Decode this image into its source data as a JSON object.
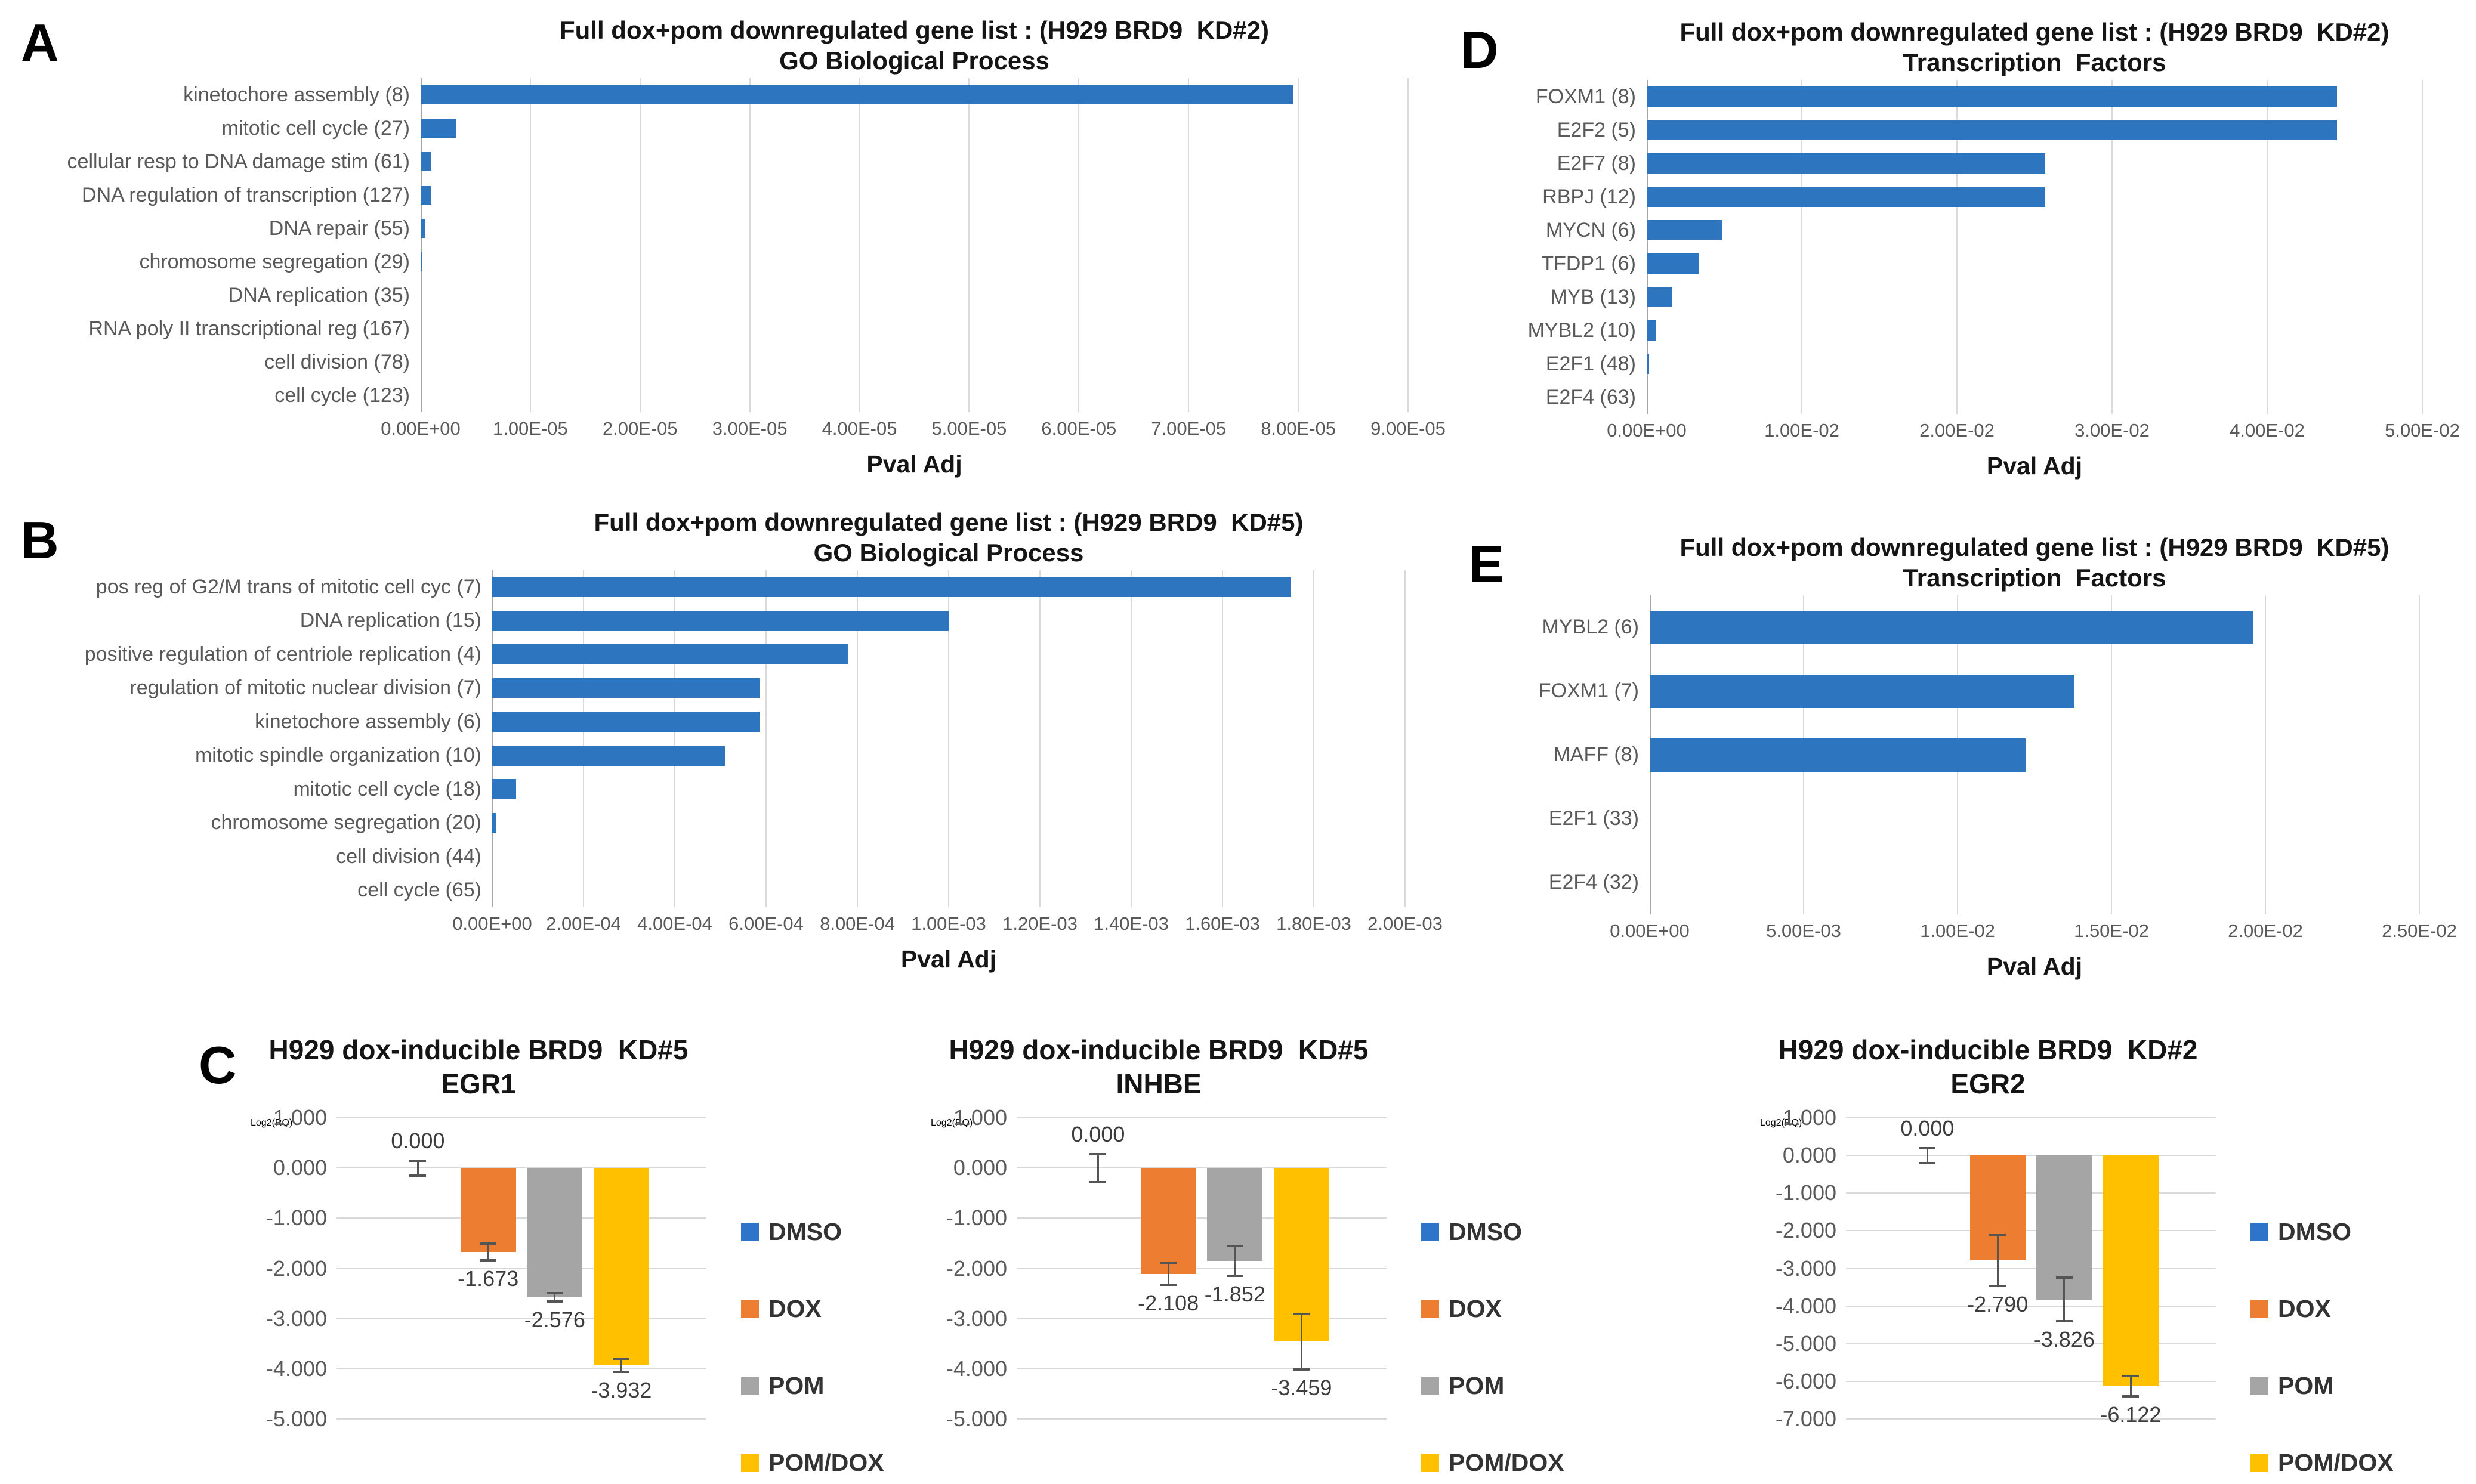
{
  "letters": {
    "A": "A",
    "B": "B",
    "C": "C",
    "D": "D",
    "E": "E"
  },
  "colors": {
    "go_bar": "#2E75C0",
    "gridline": "#D9D9D9",
    "axis_line": "#A6A6A6",
    "dmso": "#2E74C8",
    "dox": "#ED7D31",
    "pom": "#A5A5A5",
    "pomdox": "#FFC000",
    "error_bar": "#555555"
  },
  "chart_data": [
    {
      "id": "A",
      "type": "bar",
      "orientation": "horizontal",
      "title_line1": "Full dox+pom downregulated gene list : (H929 BRD9  KD#2)",
      "title_line2": "GO Biological Process",
      "xlabel": "Pval Adj",
      "bar_color": "#2E75C0",
      "categories": [
        "kinetochore assembly (8)",
        "mitotic cell cycle (27)",
        "cellular resp to DNA damage stim (61)",
        "DNA regulation of transcription (127)",
        "DNA repair (55)",
        "chromosome segregation (29)",
        "DNA replication (35)",
        "RNA poly II transcriptional reg (167)",
        "cell division (78)",
        "cell cycle (123)"
      ],
      "values": [
        7.95e-05,
        3.2e-06,
        1e-06,
        1e-06,
        4.5e-07,
        1.5e-07,
        0,
        0,
        0,
        0
      ],
      "xlim": [
        0,
        9e-05
      ],
      "tick_values": [
        0,
        1e-05,
        2e-05,
        3e-05,
        4e-05,
        5e-05,
        6e-05,
        7e-05,
        8e-05,
        9e-05
      ],
      "tick_labels": [
        "0.00E+00",
        "1.00E-05",
        "2.00E-05",
        "3.00E-05",
        "4.00E-05",
        "5.00E-05",
        "6.00E-05",
        "7.00E-05",
        "8.00E-05",
        "9.00E-05"
      ],
      "grid": true,
      "legend_position": "none"
    },
    {
      "id": "B",
      "type": "bar",
      "orientation": "horizontal",
      "title_line1": "Full dox+pom downregulated gene list : (H929 BRD9  KD#5)",
      "title_line2": "GO Biological Process",
      "xlabel": "Pval Adj",
      "bar_color": "#2E75C0",
      "categories": [
        "pos reg of G2/M trans of mitotic cell cyc (7)",
        "DNA replication (15)",
        "positive regulation of centriole replication (4)",
        "regulation of mitotic nuclear division (7)",
        "kinetochore assembly (6)",
        "mitotic spindle organization (10)",
        "mitotic cell cycle (18)",
        "chromosome segregation (20)",
        "cell division (44)",
        "cell cycle (65)"
      ],
      "values": [
        0.00175,
        0.001,
        0.00078,
        0.000585,
        0.000585,
        0.00051,
        5.2e-05,
        8e-06,
        0,
        0
      ],
      "xlim": [
        0,
        0.002
      ],
      "tick_values": [
        0,
        0.0002,
        0.0004,
        0.0006,
        0.0008,
        0.001,
        0.0012,
        0.0014,
        0.0016,
        0.0018,
        0.002
      ],
      "tick_labels": [
        "0.00E+00",
        "2.00E-04",
        "4.00E-04",
        "6.00E-04",
        "8.00E-04",
        "1.00E-03",
        "1.20E-03",
        "1.40E-03",
        "1.60E-03",
        "1.80E-03",
        "2.00E-03"
      ],
      "grid": true,
      "legend_position": "none"
    },
    {
      "id": "D",
      "type": "bar",
      "orientation": "horizontal",
      "title_line1": "Full dox+pom downregulated gene list : (H929 BRD9  KD#2)",
      "title_line2": "Transcription  Factors",
      "xlabel": "Pval Adj",
      "bar_color": "#2E75C0",
      "categories": [
        "FOXM1 (8)",
        "E2F2 (5)",
        "E2F7 (8)",
        "RBPJ (12)",
        "MYCN (6)",
        "TFDP1 (6)",
        "MYB (13)",
        "MYBL2 (10)",
        "E2F1 (48)",
        "E2F4 (63)"
      ],
      "values": [
        0.0445,
        0.0445,
        0.0257,
        0.0257,
        0.0049,
        0.0034,
        0.0016,
        0.0006,
        0.00015,
        0
      ],
      "xlim": [
        0,
        0.05
      ],
      "tick_values": [
        0,
        0.01,
        0.02,
        0.03,
        0.04,
        0.05
      ],
      "tick_labels": [
        "0.00E+00",
        "1.00E-02",
        "2.00E-02",
        "3.00E-02",
        "4.00E-02",
        "5.00E-02"
      ],
      "grid": true,
      "legend_position": "none"
    },
    {
      "id": "E",
      "type": "bar",
      "orientation": "horizontal",
      "title_line1": "Full dox+pom downregulated gene list : (H929 BRD9  KD#5)",
      "title_line2": "Transcription  Factors",
      "xlabel": "Pval Adj",
      "bar_color": "#2E75C0",
      "categories": [
        "MYBL2 (6)",
        "FOXM1 (7)",
        "MAFF (8)",
        "E2F1 (33)",
        "E2F4 (32)"
      ],
      "values": [
        0.0196,
        0.0138,
        0.0122,
        0,
        0
      ],
      "xlim": [
        0,
        0.025
      ],
      "tick_values": [
        0,
        0.005,
        0.01,
        0.015,
        0.02,
        0.025
      ],
      "tick_labels": [
        "0.00E+00",
        "5.00E-03",
        "1.00E-02",
        "1.50E-02",
        "2.00E-02",
        "2.50E-02"
      ],
      "grid": true,
      "legend_position": "none"
    },
    {
      "id": "C1",
      "type": "column",
      "orientation": "vertical",
      "title_line1": "H929 dox-inducible BRD9  KD#5",
      "title_line2": "EGR1",
      "ylabel": "Log2(RQ)",
      "ylim": [
        -5,
        1
      ],
      "ytick_labels": [
        "1.000",
        "0.000",
        "-1.000",
        "-2.000",
        "-3.000",
        "-4.000",
        "-5.000"
      ],
      "grid": true,
      "legend_position": "right",
      "series": [
        {
          "name": "DMSO",
          "color": "#2E74C8",
          "value": 0.0,
          "label": "0.000",
          "error": 0.15
        },
        {
          "name": "DOX",
          "color": "#ED7D31",
          "value": -1.673,
          "label": "-1.673",
          "error": 0.17
        },
        {
          "name": "POM",
          "color": "#A5A5A5",
          "value": -2.576,
          "label": "-2.576",
          "error": 0.08
        },
        {
          "name": "POM/DOX",
          "color": "#FFC000",
          "value": -3.932,
          "label": "-3.932",
          "error": 0.13
        }
      ]
    },
    {
      "id": "C2",
      "type": "column",
      "orientation": "vertical",
      "title_line1": "H929 dox-inducible BRD9  KD#5",
      "title_line2": "INHBE",
      "ylabel": "Log2(RQ)",
      "ylim": [
        -5,
        1
      ],
      "ytick_labels": [
        "1.000",
        "0.000",
        "-1.000",
        "-2.000",
        "-3.000",
        "-4.000",
        "-5.000"
      ],
      "grid": true,
      "legend_position": "right",
      "series": [
        {
          "name": "DMSO",
          "color": "#2E74C8",
          "value": 0.0,
          "label": "0.000",
          "error": 0.28
        },
        {
          "name": "DOX",
          "color": "#ED7D31",
          "value": -2.108,
          "label": "-2.108",
          "error": 0.22
        },
        {
          "name": "POM",
          "color": "#A5A5A5",
          "value": -1.852,
          "label": "-1.852",
          "error": 0.3
        },
        {
          "name": "POM/DOX",
          "color": "#FFC000",
          "value": -3.459,
          "label": "-3.459",
          "error": 0.55
        }
      ]
    },
    {
      "id": "C3",
      "type": "column",
      "orientation": "vertical",
      "title_line1": "H929 dox-inducible BRD9  KD#2",
      "title_line2": "EGR2",
      "ylabel": "Log2(RQ)",
      "ylim": [
        -7,
        1
      ],
      "ytick_labels": [
        "1.000",
        "0.000",
        "-1.000",
        "-2.000",
        "-3.000",
        "-4.000",
        "-5.000",
        "-6.000",
        "-7.000"
      ],
      "grid": true,
      "legend_position": "right",
      "series": [
        {
          "name": "DMSO",
          "color": "#2E74C8",
          "value": 0.0,
          "label": "0.000",
          "error": 0.2
        },
        {
          "name": "DOX",
          "color": "#ED7D31",
          "value": -2.79,
          "label": "-2.790",
          "error": 0.67
        },
        {
          "name": "POM",
          "color": "#A5A5A5",
          "value": -3.826,
          "label": "-3.826",
          "error": 0.58
        },
        {
          "name": "POM/DOX",
          "color": "#FFC000",
          "value": -6.122,
          "label": "-6.122",
          "error": 0.27
        }
      ]
    }
  ]
}
